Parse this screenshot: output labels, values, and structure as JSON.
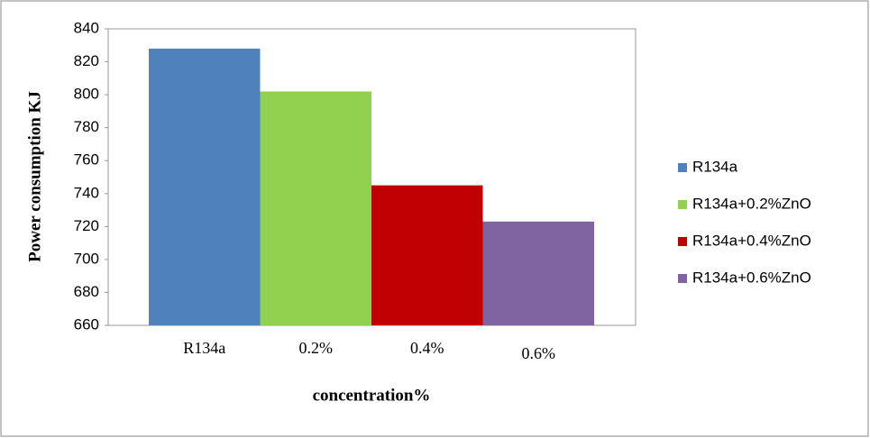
{
  "chart_data": {
    "type": "bar",
    "categories": [
      "R134a",
      "0.2%",
      "0.4%",
      "0.6%"
    ],
    "series": [
      {
        "name": "R134a",
        "color": "#4f81bd",
        "values": [
          828,
          null,
          null,
          null
        ]
      },
      {
        "name": "R134a+0.2%ZnO",
        "color": "#92d050",
        "values": [
          null,
          802,
          null,
          null
        ]
      },
      {
        "name": "R134a+0.4%ZnO",
        "color": "#c00000",
        "values": [
          null,
          null,
          745,
          null
        ]
      },
      {
        "name": "R134a+0.6%ZnO",
        "color": "#8064a2",
        "values": [
          null,
          null,
          null,
          723
        ]
      }
    ],
    "x_label": "concentration%",
    "y_label": "Power consumption KJ",
    "ylim": [
      660,
      840
    ],
    "yticks": [
      660,
      680,
      700,
      720,
      740,
      760,
      780,
      800,
      820,
      840
    ],
    "grid": false,
    "legend": "right"
  }
}
